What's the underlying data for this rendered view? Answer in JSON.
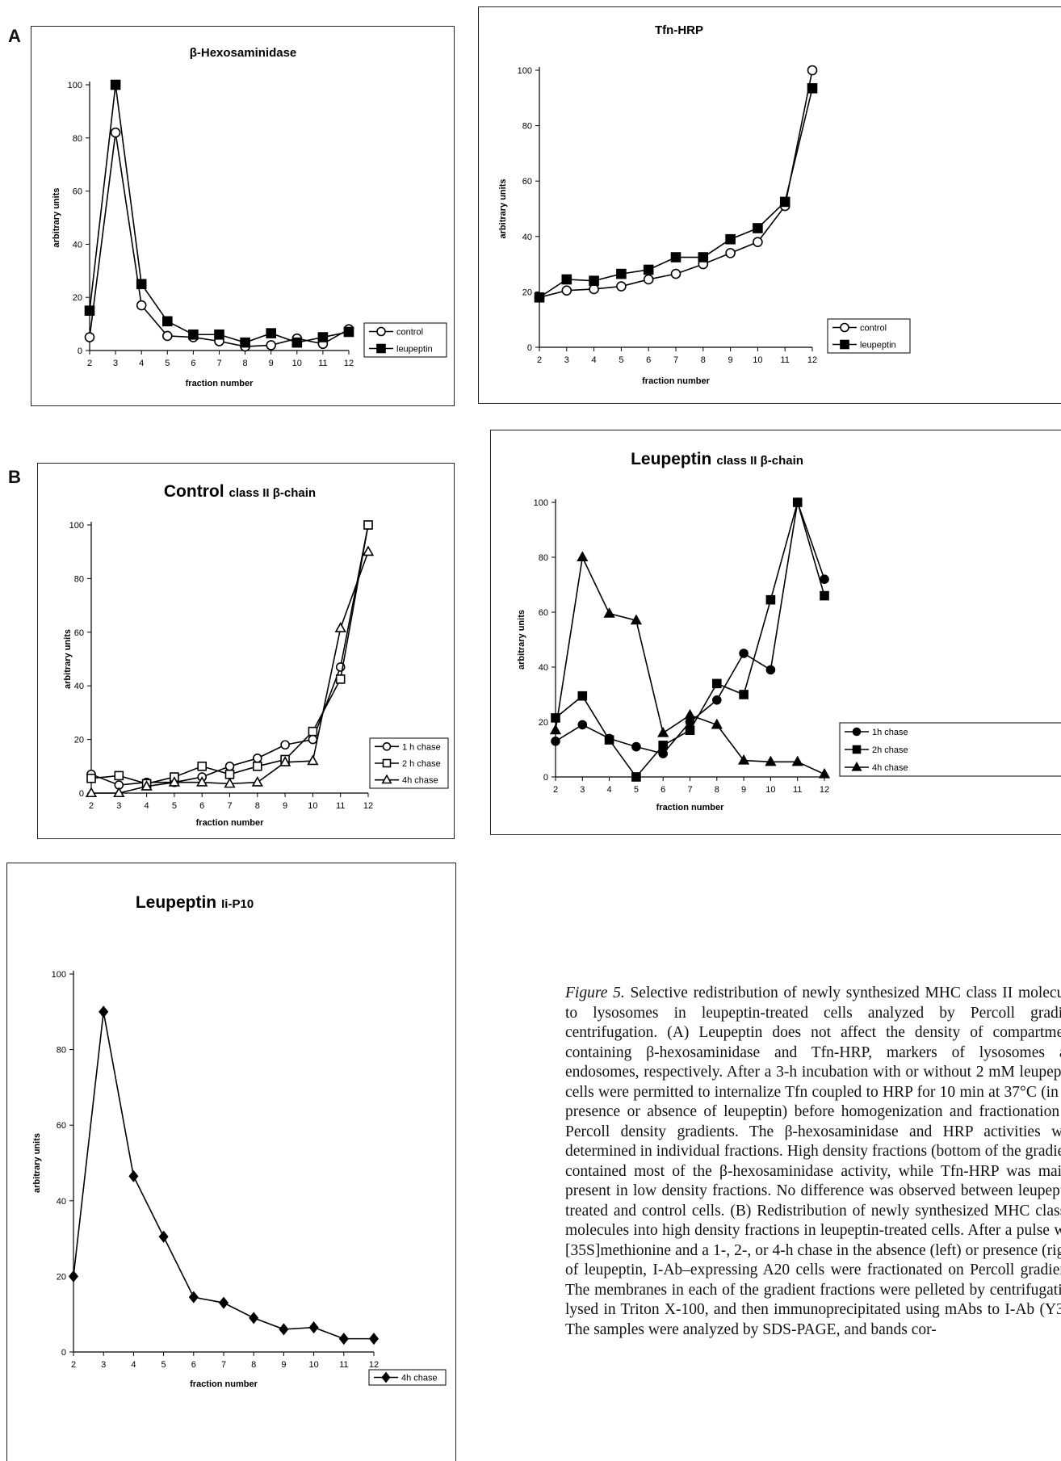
{
  "panel_labels": {
    "a": "A",
    "b": "B"
  },
  "caption": {
    "lead": "Figure 5.",
    "body": "Selective redistribution of newly synthesized MHC class II molecules to lysosomes in leupeptin-treated cells analyzed by Percoll gradient centrifugation. (A) Leupeptin does not affect the density of compartments containing β-hexosaminidase and Tfn-HRP, markers of lysosomes and endosomes, respectively. After a 3-h incubation with or without 2 mM leupeptin, cells were permitted to internalize Tfn coupled to HRP for 10 min at 37°C (in the presence or absence of leupeptin) before homogenization and fractionation on Percoll density gradients. The β-hexosaminidase and HRP activities were determined in individual fractions. High density fractions (bottom of the gradient) contained most of the β-hexosaminidase activity, while Tfn-HRP was mainly present in low density fractions. No difference was observed between leupeptin-treated and control cells. (B) Redistribution of newly synthesized MHC class II molecules into high density fractions in leupeptin-treated cells. After a pulse with [35S]methionine and a 1-, 2-, or 4-h chase in the absence (left) or presence (right) of leupeptin, I-Ab–expressing A20 cells were fractionated on Percoll gradients. The membranes in each of the gradient fractions were pelleted by centrifugation, lysed in Triton X-100, and then immunoprecipitated using mAbs to I-Ab (Y3P). The samples were analyzed by SDS-PAGE, and bands cor-"
  },
  "chart_data": [
    {
      "id": "hex",
      "type": "line",
      "title": "β-Hexosaminidase",
      "title_small": "",
      "xlabel": "fraction number",
      "ylabel": "arbitrary units",
      "x": [
        2,
        3,
        4,
        5,
        6,
        7,
        8,
        9,
        10,
        11,
        12
      ],
      "ylim": [
        0,
        100
      ],
      "yticks": [
        0,
        20,
        40,
        60,
        80,
        100
      ],
      "legend_position": "bottom-right",
      "series": [
        {
          "name": "control",
          "marker": "circle-open",
          "values": [
            5,
            82,
            17,
            5.5,
            5,
            3.5,
            1.5,
            2,
            4.5,
            2.5,
            8
          ]
        },
        {
          "name": "leupeptin",
          "marker": "square-filled",
          "values": [
            15,
            100,
            25,
            11,
            6,
            6,
            3,
            6.5,
            3,
            5,
            7
          ]
        }
      ]
    },
    {
      "id": "tfn",
      "type": "line",
      "title": "Tfn-HRP",
      "title_small": "",
      "xlabel": "fraction number",
      "ylabel": "arbitrary units",
      "x": [
        2,
        3,
        4,
        5,
        6,
        7,
        8,
        9,
        10,
        11,
        12
      ],
      "ylim": [
        0,
        100
      ],
      "yticks": [
        0,
        20,
        40,
        60,
        80,
        100
      ],
      "legend_position": "bottom-right",
      "series": [
        {
          "name": "control",
          "marker": "circle-open",
          "values": [
            18,
            20.5,
            21,
            22,
            24.5,
            26.5,
            30,
            34,
            38,
            51,
            100
          ]
        },
        {
          "name": "leupeptin",
          "marker": "square-filled",
          "values": [
            18,
            24.5,
            24,
            26.5,
            28,
            32.5,
            32.5,
            39,
            43,
            52.5,
            93.5
          ]
        }
      ]
    },
    {
      "id": "ctrl",
      "type": "line",
      "title": "Control",
      "title_small": "class II β-chain",
      "xlabel": "fraction number",
      "ylabel": "arbitrary units",
      "x": [
        2,
        3,
        4,
        5,
        6,
        7,
        8,
        9,
        10,
        11,
        12
      ],
      "ylim": [
        0,
        100
      ],
      "yticks": [
        0,
        20,
        40,
        60,
        80,
        100
      ],
      "legend_position": "bottom-right",
      "series": [
        {
          "name": "1 h chase",
          "marker": "circle-open",
          "values": [
            7,
            3,
            4,
            4,
            6,
            10,
            13,
            18,
            20,
            47,
            100
          ]
        },
        {
          "name": "2 h chase",
          "marker": "square-open",
          "values": [
            5.5,
            6.5,
            3.5,
            6,
            10,
            7,
            10,
            12.5,
            23,
            42.5,
            100
          ]
        },
        {
          "name": "4h chase",
          "marker": "triangle-open",
          "values": [
            0,
            0,
            2.5,
            4,
            4,
            3.5,
            4,
            11.5,
            12,
            61.5,
            90
          ]
        }
      ]
    },
    {
      "id": "leu",
      "type": "line",
      "title": "Leupeptin",
      "title_small": "class II β-chain",
      "xlabel": "fraction number",
      "ylabel": "arbitrary units",
      "x": [
        2,
        3,
        4,
        5,
        6,
        7,
        8,
        9,
        10,
        11,
        12
      ],
      "ylim": [
        0,
        100
      ],
      "yticks": [
        0,
        20,
        40,
        60,
        80,
        100
      ],
      "legend_position": "bottom-right",
      "series": [
        {
          "name": "1h chase",
          "marker": "circle-filled",
          "values": [
            13,
            19,
            14,
            11,
            8.5,
            20,
            28,
            45,
            39,
            100,
            72
          ]
        },
        {
          "name": "2h chase",
          "marker": "square-filled",
          "values": [
            21.5,
            29.5,
            13.5,
            0,
            11.5,
            17,
            34,
            30,
            64.5,
            100,
            66
          ]
        },
        {
          "name": "4h chase",
          "marker": "triangle-filled",
          "values": [
            17,
            80,
            59.5,
            57,
            16,
            22.5,
            19,
            6,
            5.5,
            5.5,
            1
          ]
        }
      ]
    },
    {
      "id": "p10",
      "type": "line",
      "title": "Leupeptin",
      "title_small": "Ii-P10",
      "xlabel": "fraction number",
      "ylabel": "arbitrary units",
      "x": [
        2,
        3,
        4,
        5,
        6,
        7,
        8,
        9,
        10,
        11,
        12
      ],
      "ylim": [
        0,
        100
      ],
      "yticks": [
        0,
        20,
        40,
        60,
        80,
        100
      ],
      "legend_position": "bottom-right",
      "series": [
        {
          "name": "4h chase",
          "marker": "diamond-filled",
          "values": [
            20,
            90,
            46.5,
            30.5,
            14.5,
            13,
            9,
            6,
            6.5,
            3.5,
            3.5
          ]
        }
      ]
    }
  ]
}
